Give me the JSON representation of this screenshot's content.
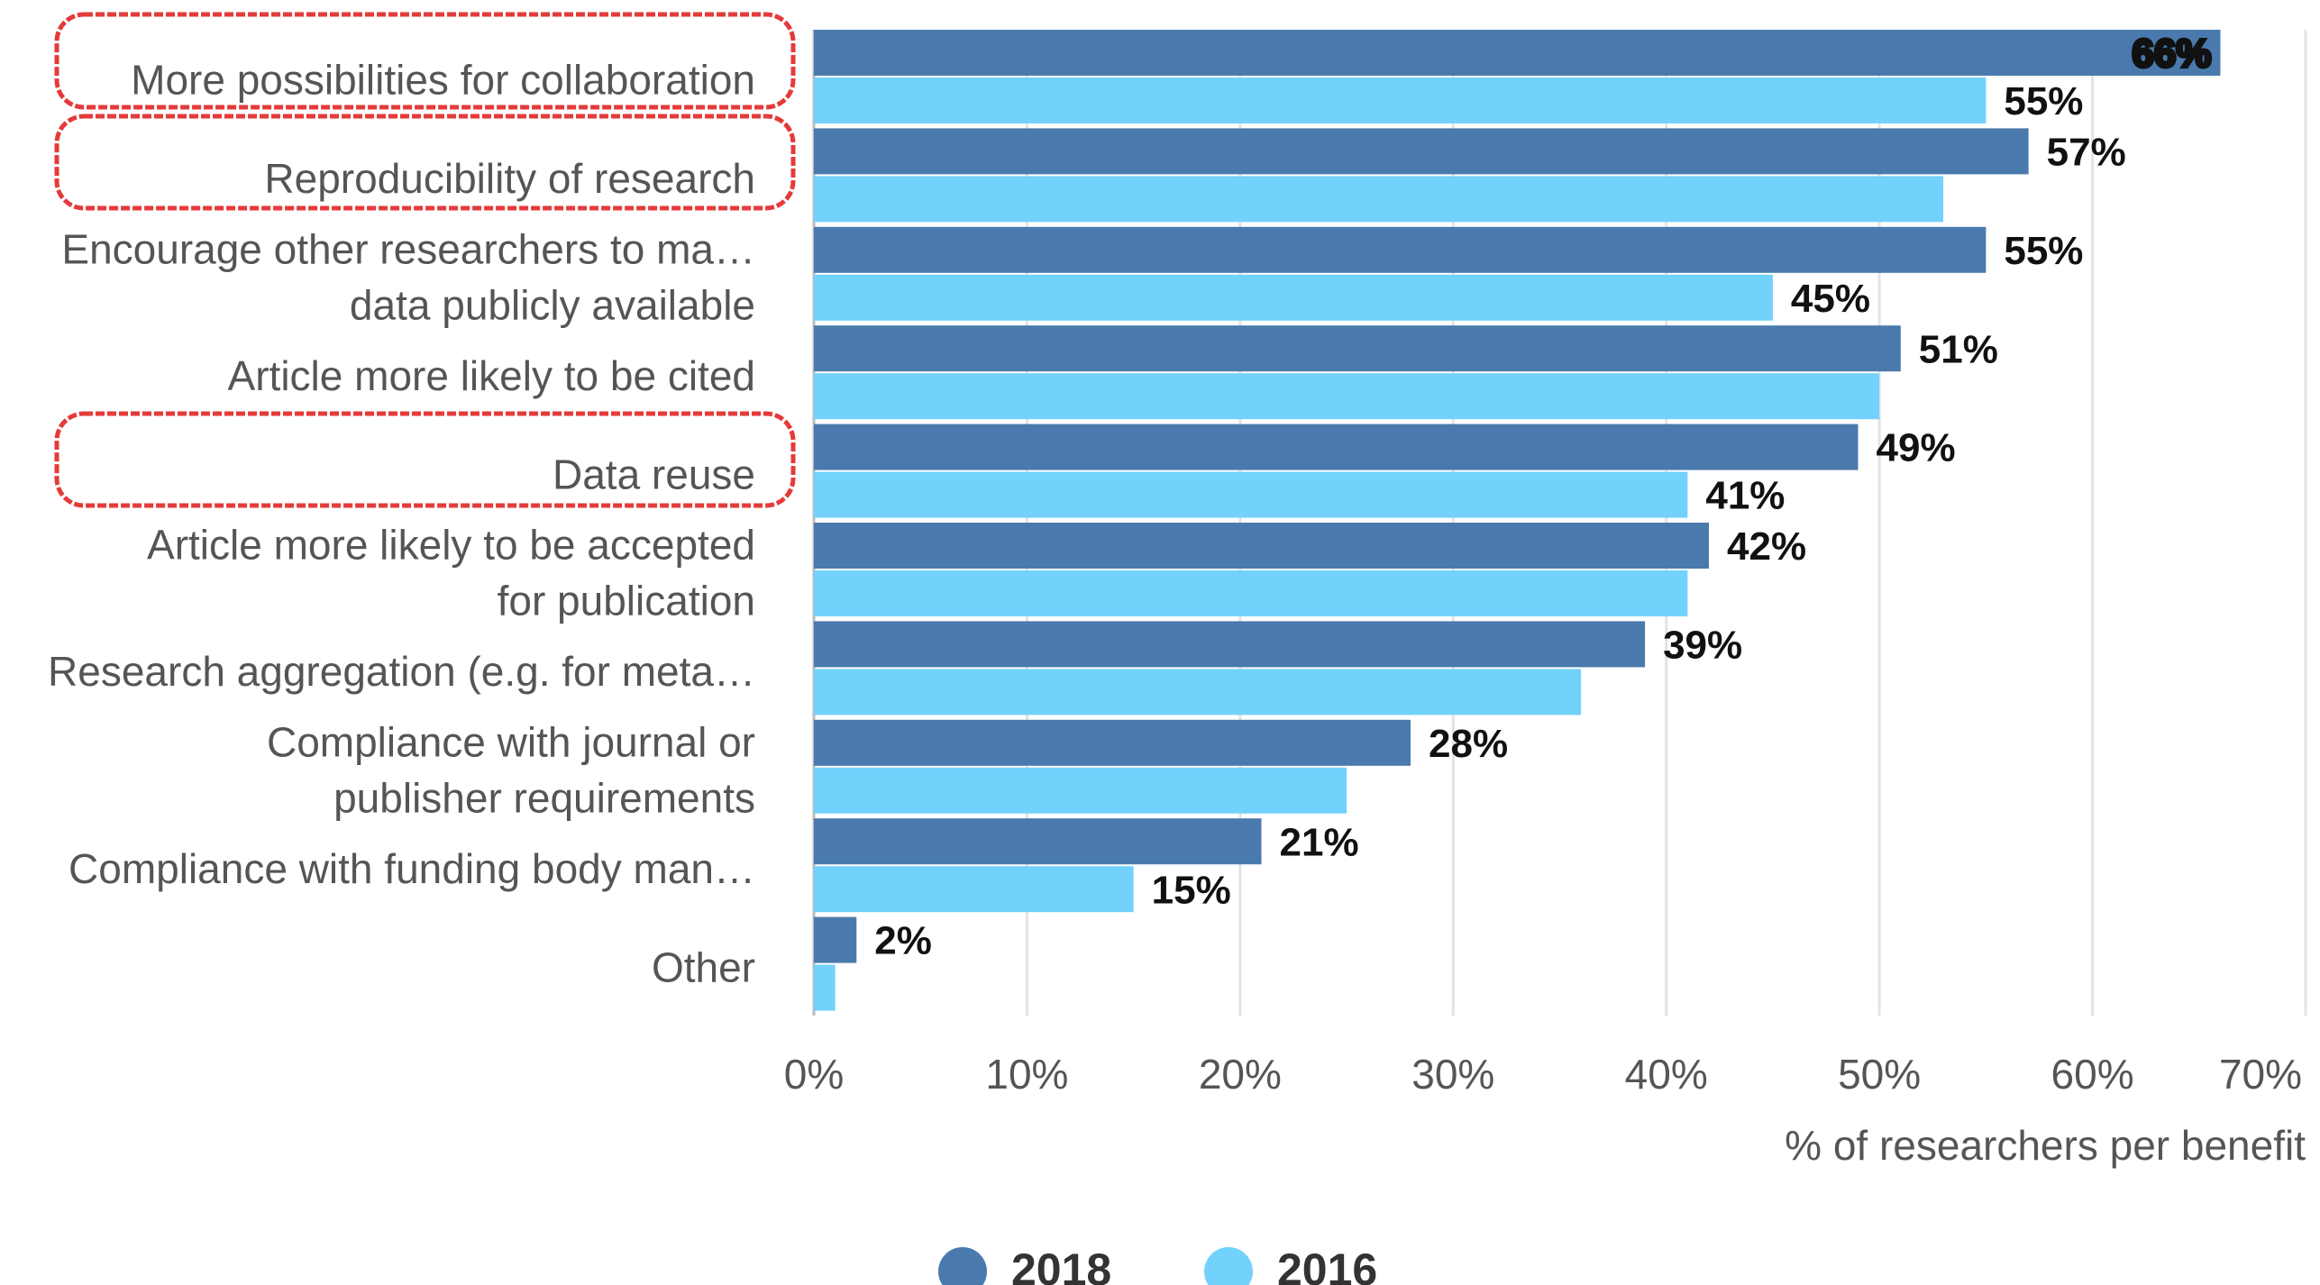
{
  "chart_data": {
    "type": "hbar",
    "categories": [
      "More possibilities for collaboration",
      "Reproducibility of research",
      "Encourage other researchers to ma…\ndata publicly available",
      "Article more likely to be cited",
      "Data reuse",
      "Article more likely to be accepted\nfor publication",
      "Research aggregation (e.g. for meta…",
      "Compliance with journal or\npublisher requirements",
      "Compliance with funding body man…",
      "Other"
    ],
    "series": [
      {
        "name": "2018",
        "color": "#4a7aad",
        "values": [
          66,
          57,
          55,
          51,
          49,
          42,
          39,
          28,
          21,
          2
        ],
        "value_labels": [
          "66%",
          "57%",
          "55%",
          "51%",
          "49%",
          "42%",
          "39%",
          "28%",
          "21%",
          "2%"
        ]
      },
      {
        "name": "2016",
        "color": "#72d2fb",
        "values": [
          55,
          53,
          45,
          50,
          41,
          41,
          36,
          25,
          15,
          1
        ],
        "value_labels": [
          "55%",
          null,
          "45%",
          null,
          "41%",
          null,
          null,
          null,
          "15%",
          null
        ]
      }
    ],
    "xlim": [
      0,
      70
    ],
    "xticks": [
      {
        "value": 0,
        "label": "0%"
      },
      {
        "value": 10,
        "label": "10%"
      },
      {
        "value": 20,
        "label": "20%"
      },
      {
        "value": 30,
        "label": "30%"
      },
      {
        "value": 40,
        "label": "40%"
      },
      {
        "value": 50,
        "label": "50%"
      },
      {
        "value": 60,
        "label": "60%"
      },
      {
        "value": 70,
        "label": "70%"
      }
    ],
    "x_label": "% of researchers per benefit",
    "grid": true,
    "legend": "bottom"
  }
}
